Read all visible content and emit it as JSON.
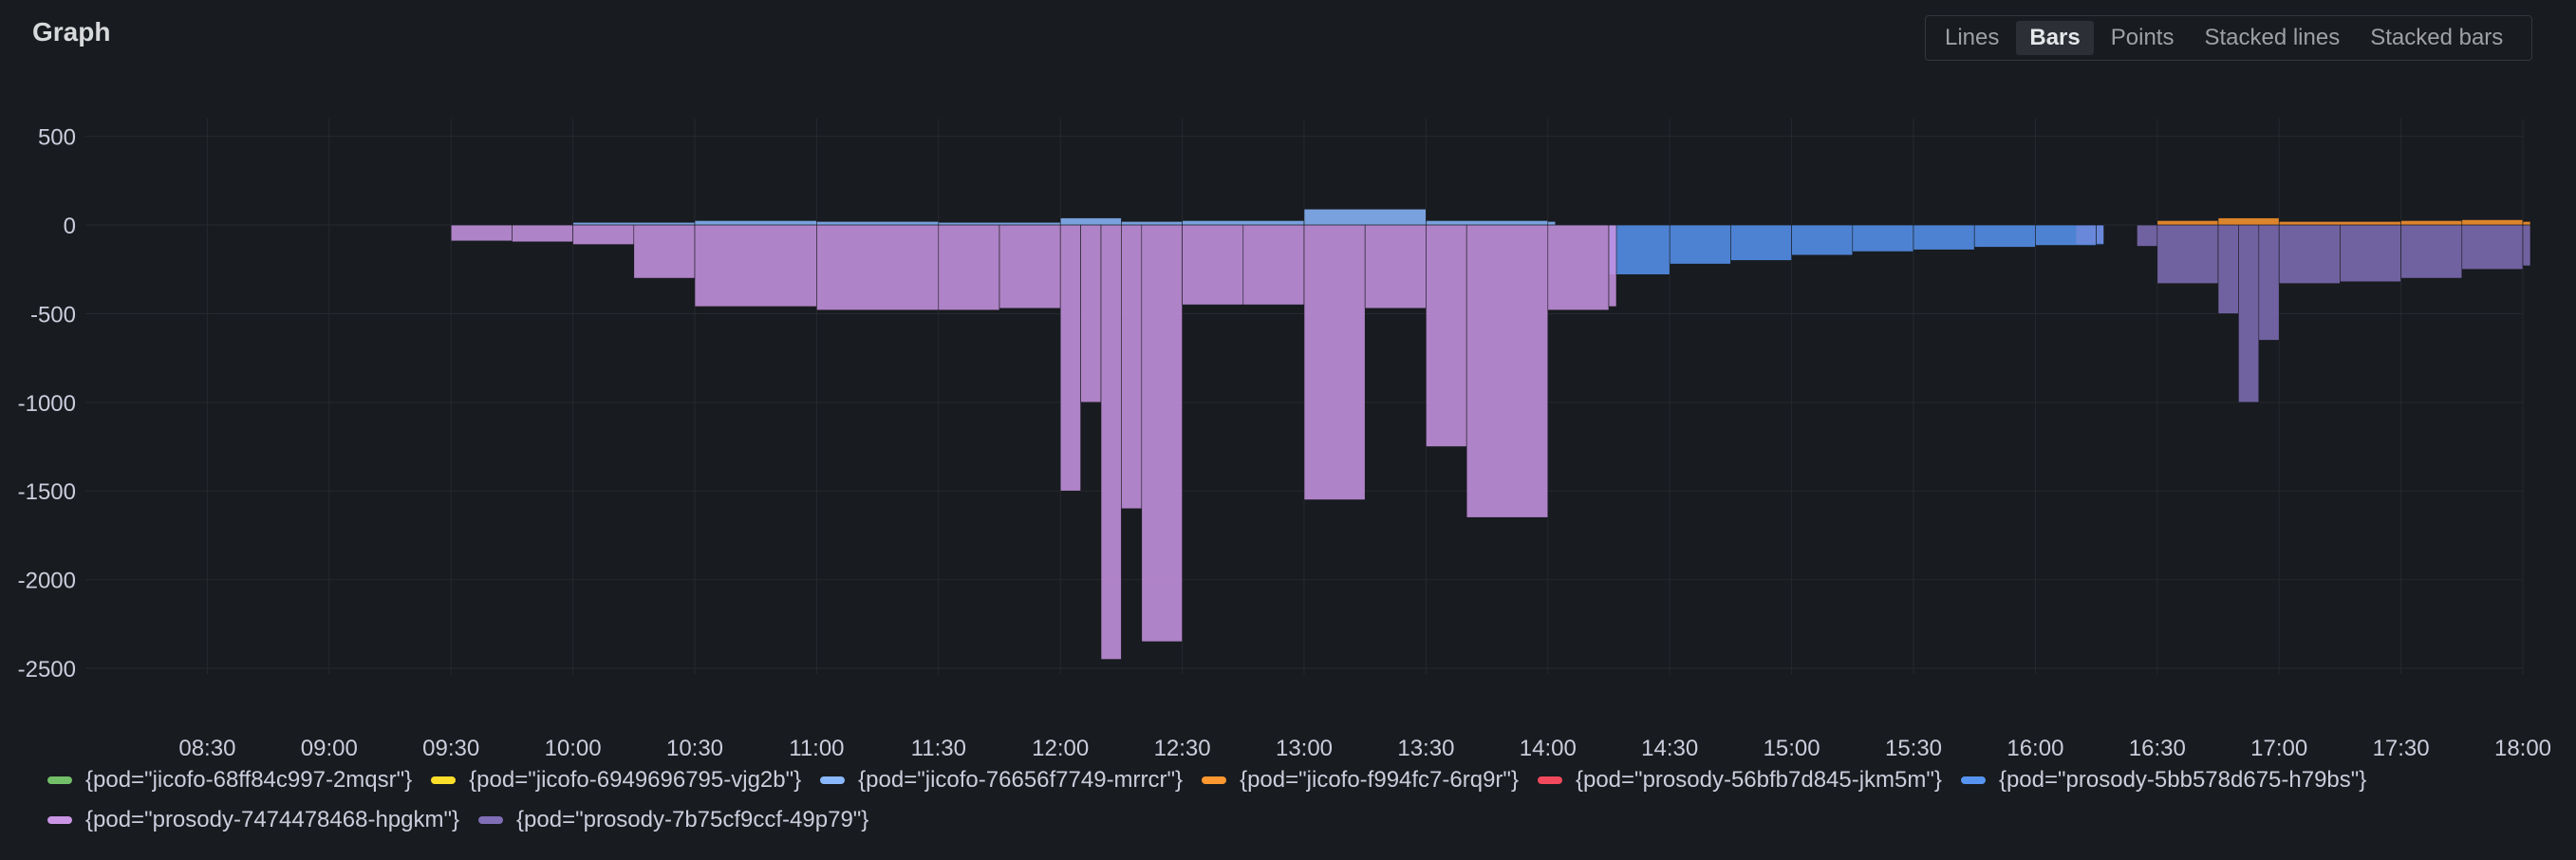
{
  "panel": {
    "title": "Graph"
  },
  "toggles": [
    {
      "label": "Lines",
      "active": false
    },
    {
      "label": "Bars",
      "active": true
    },
    {
      "label": "Points",
      "active": false
    },
    {
      "label": "Stacked lines",
      "active": false
    },
    {
      "label": "Stacked bars",
      "active": false
    }
  ],
  "chart_data": {
    "type": "bar",
    "title": "Graph",
    "xlabel": "",
    "ylabel": "",
    "ylim": [
      -2800,
      600
    ],
    "xlim": [
      "08:00",
      "18:00"
    ],
    "grid": true,
    "legend_position": "bottom",
    "y_ticks": [
      "500",
      "0",
      "-500",
      "-1000",
      "-1500",
      "-2000",
      "-2500"
    ],
    "x_ticks": [
      "08:30",
      "09:00",
      "09:30",
      "10:00",
      "10:30",
      "11:00",
      "11:30",
      "12:00",
      "12:30",
      "13:00",
      "13:30",
      "14:00",
      "14:30",
      "15:00",
      "15:30",
      "16:00",
      "16:30",
      "17:00",
      "17:30",
      "18:00"
    ],
    "series": [
      {
        "name": "{pod=\"jicofo-68ff84c997-2mqsr\"}",
        "color": "#73bf69",
        "points": []
      },
      {
        "name": "{pod=\"jicofo-6949696795-vjg2b\"}",
        "color": "#fade2a",
        "points": []
      },
      {
        "name": "{pod=\"jicofo-76656f7749-mrrcr\"}",
        "color": "#8ab8ff",
        "points": [
          [
            "10:00",
            15
          ],
          [
            "10:30",
            25
          ],
          [
            "11:00",
            20
          ],
          [
            "11:30",
            15
          ],
          [
            "12:00",
            40
          ],
          [
            "12:15",
            20
          ],
          [
            "12:30",
            25
          ],
          [
            "13:00",
            90
          ],
          [
            "13:30",
            25
          ],
          [
            "14:00",
            20
          ]
        ]
      },
      {
        "name": "{pod=\"jicofo-f994fc7-6rq9r\"}",
        "color": "#ff9830",
        "points": [
          [
            "16:30",
            25
          ],
          [
            "16:45",
            40
          ],
          [
            "17:00",
            20
          ],
          [
            "17:30",
            25
          ],
          [
            "17:45",
            30
          ],
          [
            "18:00",
            20
          ]
        ]
      },
      {
        "name": "{pod=\"prosody-56bfb7d845-jkm5m\"}",
        "color": "#f2495c",
        "points": [
          [
            "16:10",
            -110
          ],
          [
            "16:15",
            -105
          ]
        ]
      },
      {
        "name": "{pod=\"prosody-5bb578d675-h79bs\"}",
        "color": "#5794f2",
        "points": [
          [
            "14:15",
            -280
          ],
          [
            "14:30",
            -220
          ],
          [
            "14:45",
            -200
          ],
          [
            "15:00",
            -170
          ],
          [
            "15:15",
            -150
          ],
          [
            "15:30",
            -140
          ],
          [
            "15:45",
            -125
          ],
          [
            "16:00",
            -115
          ],
          [
            "16:15",
            -110
          ]
        ]
      },
      {
        "name": "{pod=\"prosody-7474478468-hpgkm\"}",
        "color": "#ca95e5",
        "points": [
          [
            "09:30",
            -90
          ],
          [
            "09:45",
            -95
          ],
          [
            "10:00",
            -110
          ],
          [
            "10:15",
            -300
          ],
          [
            "10:30",
            -460
          ],
          [
            "11:00",
            -480
          ],
          [
            "11:30",
            -480
          ],
          [
            "11:45",
            -470
          ],
          [
            "12:00",
            -1500
          ],
          [
            "12:05",
            -1000
          ],
          [
            "12:10",
            -2450
          ],
          [
            "12:15",
            -1600
          ],
          [
            "12:20",
            -2350
          ],
          [
            "12:30",
            -450
          ],
          [
            "12:45",
            -450
          ],
          [
            "13:00",
            -1550
          ],
          [
            "13:15",
            -470
          ],
          [
            "13:30",
            -1250
          ],
          [
            "13:40",
            -1650
          ],
          [
            "14:00",
            -480
          ],
          [
            "14:15",
            -460
          ]
        ]
      },
      {
        "name": "{pod=\"prosody-7b75cf9ccf-49p79\"}",
        "color": "#806eb7",
        "points": [
          [
            "16:25",
            -120
          ],
          [
            "16:30",
            -330
          ],
          [
            "16:45",
            -500
          ],
          [
            "16:50",
            -1000
          ],
          [
            "16:55",
            -650
          ],
          [
            "17:00",
            -330
          ],
          [
            "17:15",
            -320
          ],
          [
            "17:30",
            -300
          ],
          [
            "17:45",
            -250
          ],
          [
            "18:00",
            -230
          ]
        ]
      }
    ]
  }
}
